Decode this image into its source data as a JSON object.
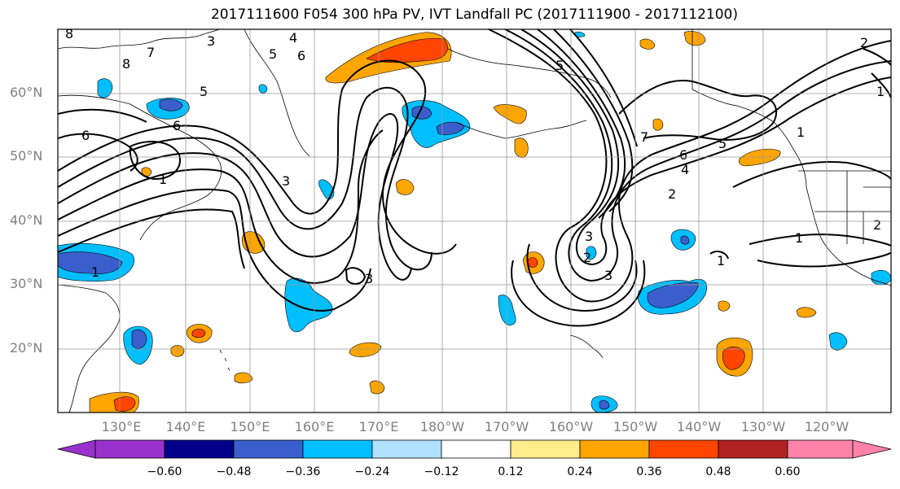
{
  "title": "2017111600 F054 300 hPa PV, IVT Landfall PC (2017111900 - 2017112100)",
  "lat_labels": [
    "60°N",
    "50°N",
    "40°N",
    "30°N",
    "20°N"
  ],
  "lon_labels": [
    "130°E",
    "140°E",
    "150°E",
    "160°E",
    "170°E",
    "180°W",
    "170°W",
    "160°W",
    "150°W",
    "140°W",
    "130°W",
    "120°W"
  ],
  "colorbar": {
    "ticks": [
      "−0.60",
      "−0.48",
      "−0.36",
      "−0.24",
      "−0.12",
      "0.12",
      "0.24",
      "0.36",
      "0.48",
      "0.60"
    ],
    "colors": [
      "#9932cc",
      "#00008b",
      "#3a5fcd",
      "#00bfff",
      "#b0e2ff",
      "#ffffff",
      "#ffec8b",
      "#ffa500",
      "#ff4500",
      "#b22222",
      "#ff82ab"
    ]
  },
  "contour_labels": [
    "8",
    "7",
    "3",
    "4",
    "5",
    "6",
    "5",
    "6",
    "3",
    "1",
    "8",
    "6",
    "3",
    "5",
    "7",
    "6",
    "5",
    "4",
    "2",
    "1",
    "1",
    "3",
    "2",
    "1",
    "2",
    "1",
    "1",
    "2",
    "3"
  ]
}
